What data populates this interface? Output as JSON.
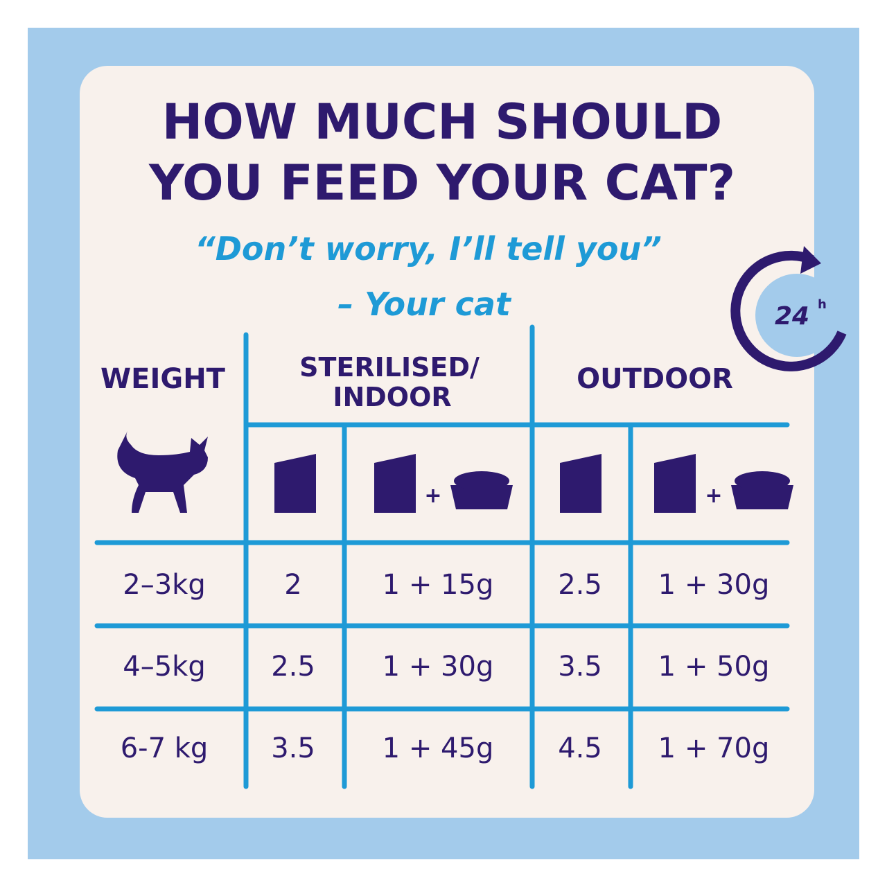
{
  "header": {
    "title_lines": [
      "HOW MUCH SHOULD",
      "YOU FEED YOUR CAT?"
    ],
    "quote": "“Don’t worry, I’ll tell you”",
    "attribution": "– Your cat"
  },
  "badge": {
    "number": "24",
    "unit": "h"
  },
  "table": {
    "headers": [
      "WEIGHT",
      [
        "STERILISED/",
        "INDOOR"
      ],
      "OUTDOOR"
    ],
    "plus": "+",
    "rows": [
      [
        "2–3kg",
        "2",
        "1 + 15g",
        "2.5",
        "1 + 30g"
      ],
      [
        "4–5kg",
        "2.5",
        "1 + 30g",
        "3.5",
        "1 + 50g"
      ],
      [
        "6-7 kg",
        "3.5",
        "1 + 45g",
        "4.5",
        "1 + 70g"
      ]
    ]
  }
}
